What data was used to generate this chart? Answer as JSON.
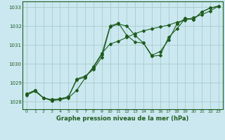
{
  "title": "Graphe pression niveau de la mer (hPa)",
  "bg_color": "#cbe8f0",
  "line_color": "#1e5c1e",
  "grid_color": "#a8cccc",
  "xlim": [
    -0.5,
    23.5
  ],
  "ylim": [
    1027.6,
    1033.3
  ],
  "yticks": [
    1028,
    1029,
    1030,
    1031,
    1032,
    1033
  ],
  "xticks": [
    0,
    1,
    2,
    3,
    4,
    5,
    6,
    7,
    8,
    9,
    10,
    11,
    12,
    13,
    14,
    15,
    16,
    17,
    18,
    19,
    20,
    21,
    22,
    23
  ],
  "series1_x": [
    0,
    1,
    2,
    3,
    4,
    5,
    6,
    7,
    8,
    9,
    10,
    11,
    12,
    13,
    14,
    15,
    16,
    17,
    18,
    19,
    20,
    21,
    22,
    23
  ],
  "series1_y": [
    1028.4,
    1028.6,
    1028.2,
    1028.1,
    1028.15,
    1028.25,
    1029.15,
    1029.3,
    1029.8,
    1030.5,
    1032.0,
    1032.15,
    1031.5,
    1031.15,
    1031.1,
    1030.4,
    1030.45,
    1031.4,
    1031.85,
    1032.4,
    1032.35,
    1032.75,
    1032.95,
    1033.05
  ],
  "series2_x": [
    0,
    1,
    2,
    3,
    4,
    5,
    6,
    7,
    8,
    9,
    10,
    11,
    12,
    13,
    14,
    15,
    16,
    17,
    18,
    19,
    20,
    21,
    22,
    23
  ],
  "series2_y": [
    1028.35,
    1028.55,
    1028.2,
    1028.05,
    1028.1,
    1028.2,
    1028.6,
    1029.25,
    1029.85,
    1030.55,
    1031.05,
    1031.2,
    1031.4,
    1031.6,
    1031.75,
    1031.85,
    1031.95,
    1032.05,
    1032.2,
    1032.3,
    1032.45,
    1032.6,
    1032.8,
    1033.05
  ],
  "series3_x": [
    0,
    1,
    2,
    3,
    4,
    5,
    6,
    7,
    8,
    9,
    10,
    11,
    12,
    13,
    14,
    15,
    16,
    17,
    18,
    19,
    20,
    21,
    22,
    23
  ],
  "series3_y": [
    1028.4,
    1028.6,
    1028.2,
    1028.1,
    1028.15,
    1028.25,
    1029.2,
    1029.35,
    1029.7,
    1030.35,
    1031.95,
    1032.1,
    1032.0,
    1031.5,
    1031.1,
    1030.45,
    1030.65,
    1031.25,
    1032.1,
    1032.4,
    1032.35,
    1032.75,
    1032.95,
    1033.05
  ]
}
